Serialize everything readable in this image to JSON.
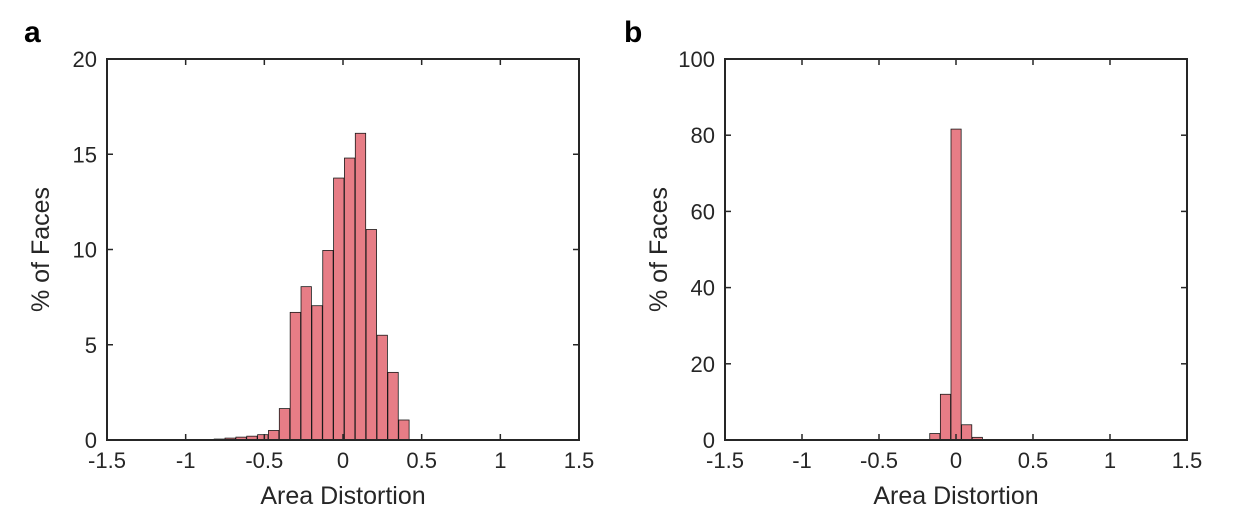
{
  "chart_data": [
    {
      "type": "bar",
      "panel_label": "a",
      "xlabel": "Area Distortion",
      "ylabel": "% of Faces",
      "xlim": [
        -1.5,
        1.5
      ],
      "ylim": [
        0,
        20
      ],
      "xticks": [
        "-1.5",
        "-1",
        "-0.5",
        "0",
        "0.5",
        "1",
        "1.5"
      ],
      "yticks": [
        "0",
        "5",
        "10",
        "15",
        "20"
      ],
      "grid": false,
      "bar_width": 0.066,
      "bar_color": "#E77D86",
      "x": [
        -0.7858,
        -0.7168,
        -0.6478,
        -0.5788,
        -0.5098,
        -0.4408,
        -0.3718,
        -0.3028,
        -0.2338,
        -0.1648,
        -0.0958,
        -0.0268,
        0.0422,
        0.1112,
        0.1802,
        0.2492,
        0.3182,
        0.3872,
        0.4562,
        0.5252
      ],
      "values": [
        0.05,
        0.1,
        0.15,
        0.2,
        0.28,
        0.5,
        1.65,
        6.7,
        8.05,
        7.05,
        9.95,
        13.75,
        14.8,
        16.1,
        11.05,
        5.5,
        3.55,
        1.05,
        0,
        0
      ]
    },
    {
      "type": "bar",
      "panel_label": "b",
      "xlabel": "Area Distortion",
      "ylabel": "% of Faces",
      "xlim": [
        -1.5,
        1.5
      ],
      "ylim": [
        0,
        100
      ],
      "xticks": [
        "-1.5",
        "-1",
        "-0.5",
        "0",
        "0.5",
        "1",
        "1.5"
      ],
      "yticks": [
        "0",
        "20",
        "40",
        "60",
        "80",
        "100"
      ],
      "grid": false,
      "bar_width": 0.066,
      "bar_color": "#E77D86",
      "x": [
        -0.1375,
        -0.0685,
        0.0005,
        0.0695,
        0.1385
      ],
      "values": [
        1.7,
        12.0,
        81.6,
        4.0,
        0.7
      ]
    }
  ]
}
